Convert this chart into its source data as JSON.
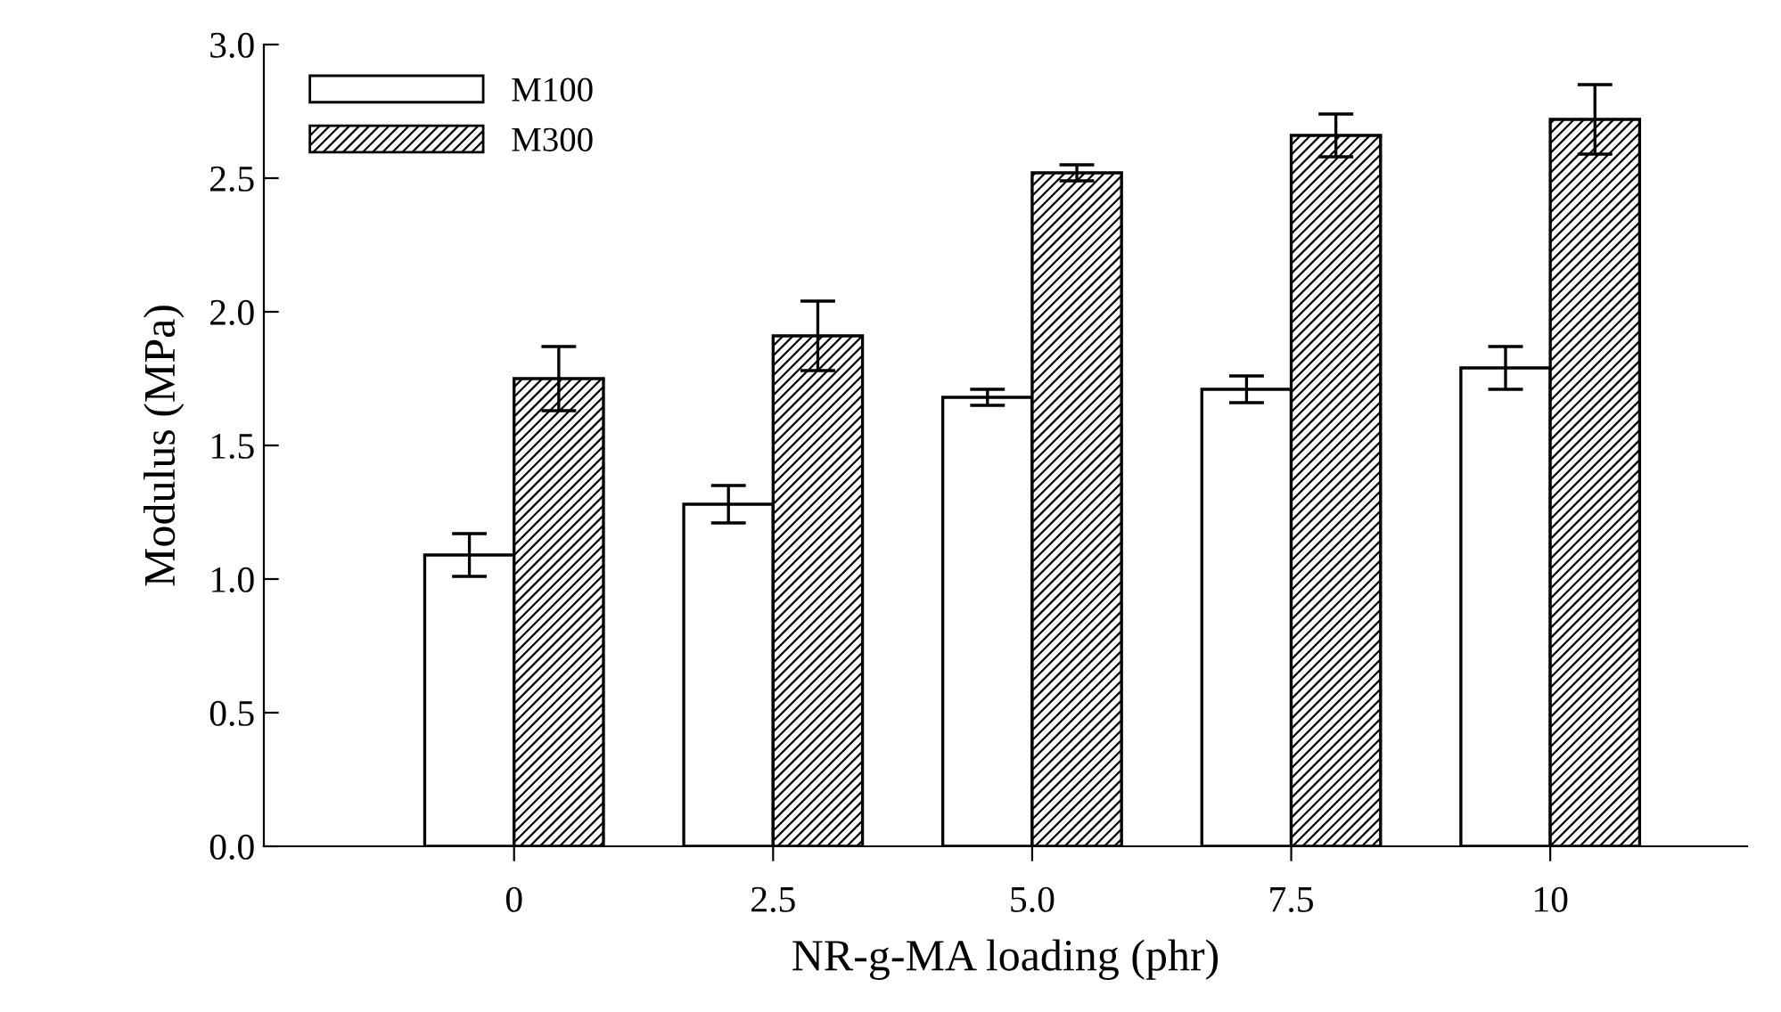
{
  "chart_data": {
    "type": "bar",
    "xlabel": "NR-g-MA loading (phr)",
    "ylabel": "Modulus (MPa)",
    "categories": [
      "0",
      "2.5",
      "5.0",
      "7.5",
      "10"
    ],
    "series": [
      {
        "name": "M100",
        "color": "#ffffff",
        "values": [
          1.09,
          1.28,
          1.68,
          1.71,
          1.79
        ],
        "errors": [
          0.08,
          0.07,
          0.03,
          0.05,
          0.08
        ]
      },
      {
        "name": "M300",
        "color": "#000000",
        "values": [
          1.75,
          1.91,
          2.52,
          2.66,
          2.72
        ],
        "errors": [
          0.12,
          0.13,
          0.03,
          0.08,
          0.13
        ]
      }
    ],
    "ylim": [
      0,
      3
    ],
    "yticks": [
      {
        "value": 0,
        "label": "0.0"
      },
      0.5,
      {
        "value": 1,
        "label": "1.0"
      },
      1.5,
      {
        "value": 2,
        "label": "2.0"
      },
      2.5,
      {
        "value": 3,
        "label": "3.0"
      }
    ],
    "grid": false,
    "legend": "top left"
  }
}
